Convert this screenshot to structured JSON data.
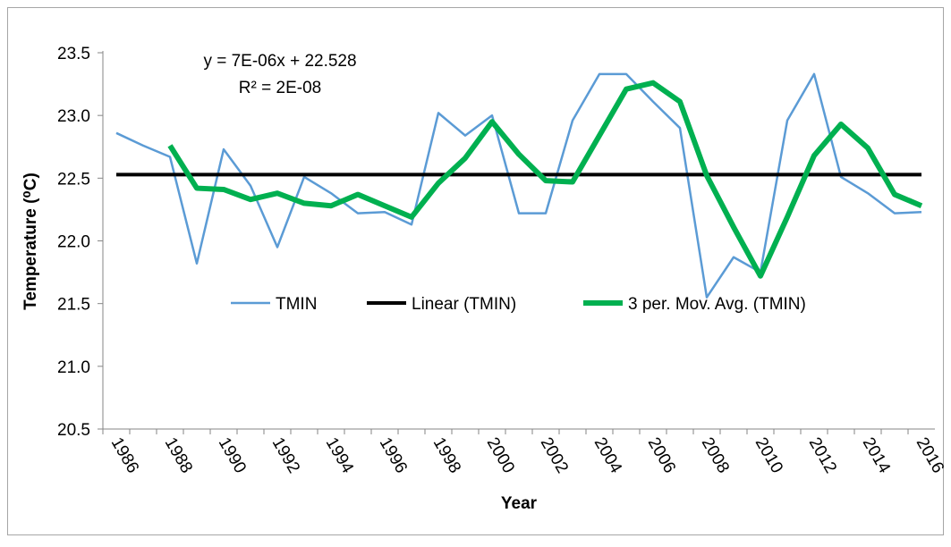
{
  "chart_data": {
    "type": "line",
    "equation": "y = 7E-06x + 22.528",
    "r_squared": "R² = 2E-08",
    "y_label": "Temperature (⁰C)",
    "x_label": "Year",
    "categories": [
      "1986",
      null,
      "1988",
      null,
      "1990",
      null,
      "1992",
      null,
      "1994",
      null,
      "1996",
      null,
      "1998",
      null,
      "2000",
      null,
      "2002",
      null,
      "2004",
      null,
      "2006",
      null,
      "2008",
      null,
      "2010",
      null,
      "2012",
      null,
      "2014",
      null,
      "2016"
    ],
    "ylim": [
      20.5,
      23.5
    ],
    "yticks": [
      20.5,
      {
        "value": 21,
        "label": "21.0"
      },
      21.5,
      {
        "value": 22,
        "label": "22.0"
      },
      22.5,
      {
        "value": 23,
        "label": "23.0"
      },
      23.5
    ],
    "series": [
      {
        "name": "TMIN",
        "color": "#5b9bd5",
        "width": 2.5,
        "values": [
          22.86,
          22.76,
          22.67,
          21.82,
          22.73,
          22.44,
          21.95,
          22.51,
          22.38,
          22.22,
          22.23,
          22.13,
          23.02,
          22.84,
          23.0,
          22.22,
          22.22,
          22.96,
          23.33,
          23.33,
          23.11,
          22.9,
          21.55,
          21.87,
          21.75,
          22.96,
          23.33,
          22.51,
          22.38,
          22.22,
          22.23
        ]
      },
      {
        "name": "Linear (TMIN)",
        "color": "#000000",
        "width": 4,
        "values": [
          22.528,
          22.528,
          22.528,
          22.528,
          22.528,
          22.528,
          22.528,
          22.528,
          22.528,
          22.528,
          22.528,
          22.528,
          22.528,
          22.528,
          22.528,
          22.528,
          22.528,
          22.528,
          22.528,
          22.528,
          22.528,
          22.528,
          22.528,
          22.528,
          22.528,
          22.528,
          22.528,
          22.528,
          22.528,
          22.528,
          22.528
        ]
      },
      {
        "name": "3 per. Mov. Avg. (TMIN)",
        "color": "#00b050",
        "width": 6,
        "values": [
          null,
          null,
          22.76,
          22.42,
          22.41,
          22.33,
          22.38,
          22.3,
          22.28,
          22.37,
          22.28,
          22.19,
          22.46,
          22.66,
          22.95,
          22.69,
          22.48,
          22.47,
          22.84,
          23.21,
          23.26,
          23.11,
          22.52,
          22.11,
          21.72,
          22.19,
          22.68,
          22.93,
          22.74,
          22.37,
          22.28
        ]
      }
    ]
  }
}
